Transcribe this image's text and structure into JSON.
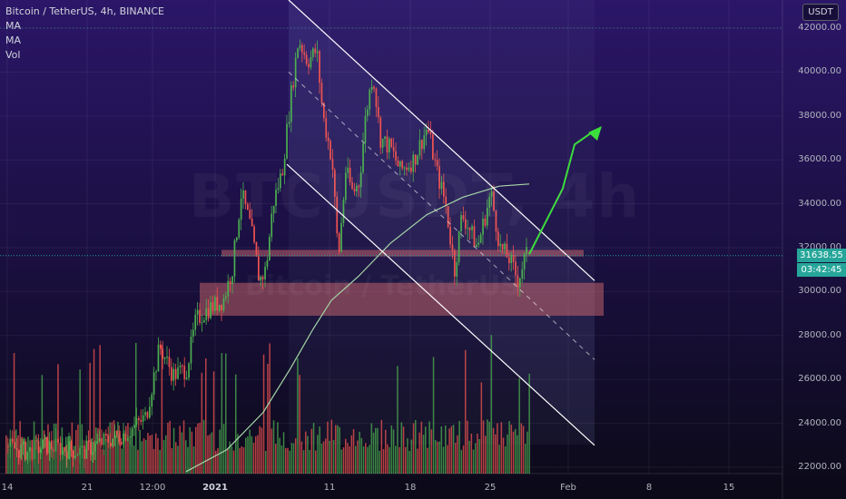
{
  "legend": {
    "symbol": "Bitcoin / TetherUS, 4h, BINANCE",
    "ma1": "MA",
    "ma2": "MA",
    "vol": "Vol"
  },
  "currency_button": "USDT",
  "watermark": {
    "symbol": "BTCUSDT, 4h",
    "description": "Bitcoin / TetherUS"
  },
  "price_axis": {
    "labels": [
      "42000.00",
      "40000.00",
      "38000.00",
      "36000.00",
      "34000.00",
      "32000.00",
      "30000.00",
      "28000.00",
      "26000.00",
      "24000.00",
      "22000.00"
    ],
    "current_price": "31638.55",
    "countdown": "03:42:45"
  },
  "time_axis": {
    "labels": [
      {
        "text": "14",
        "bold": false
      },
      {
        "text": "21",
        "bold": false
      },
      {
        "text": "12:00",
        "bold": false
      },
      {
        "text": "2021",
        "bold": true
      },
      {
        "text": "11",
        "bold": false
      },
      {
        "text": "18",
        "bold": false
      },
      {
        "text": "25",
        "bold": false
      },
      {
        "text": "Feb",
        "bold": false
      },
      {
        "text": "8",
        "bold": false
      },
      {
        "text": "15",
        "bold": false
      }
    ]
  },
  "colors": {
    "background": "#0d0a1c",
    "up": "#26a69a",
    "up_candle": "#4caf50",
    "down_candle": "#ef5350",
    "ma_line": "#a5d6a7",
    "zone": "#e57373",
    "arrow": "#3ddc3d",
    "channel": "#ffffff",
    "current_price_line": "#26a69a"
  },
  "chart_data": {
    "type": "candlestick",
    "title": "Bitcoin / TetherUS, 4h, BINANCE",
    "ylim": [
      21500,
      43000
    ],
    "y_ticks": [
      22000,
      24000,
      26000,
      28000,
      30000,
      32000,
      34000,
      36000,
      38000,
      40000,
      42000
    ],
    "current_price": 31638.55,
    "shape": "random-walk price path approximated from the chart",
    "price_path": [
      [
        0,
        23000
      ],
      [
        30,
        22700
      ],
      [
        50,
        23000
      ],
      [
        90,
        22700
      ],
      [
        110,
        23100
      ],
      [
        140,
        23600
      ],
      [
        160,
        24300
      ],
      [
        175,
        27500
      ],
      [
        190,
        26200
      ],
      [
        205,
        26500
      ],
      [
        215,
        28700
      ],
      [
        228,
        29200
      ],
      [
        245,
        29600
      ],
      [
        255,
        31000
      ],
      [
        265,
        34500
      ],
      [
        275,
        33000
      ],
      [
        285,
        30500
      ],
      [
        292,
        31000
      ],
      [
        300,
        34000
      ],
      [
        310,
        35500
      ],
      [
        320,
        39000
      ],
      [
        328,
        41500
      ],
      [
        338,
        40500
      ],
      [
        348,
        41000
      ],
      [
        355,
        38000
      ],
      [
        365,
        36000
      ],
      [
        372,
        31500
      ],
      [
        380,
        35500
      ],
      [
        388,
        34500
      ],
      [
        395,
        35000
      ],
      [
        402,
        38000
      ],
      [
        410,
        40000
      ],
      [
        418,
        37000
      ],
      [
        430,
        36500
      ],
      [
        440,
        35500
      ],
      [
        455,
        36000
      ],
      [
        470,
        37500
      ],
      [
        480,
        35500
      ],
      [
        490,
        34000
      ],
      [
        500,
        31000
      ],
      [
        508,
        33500
      ],
      [
        515,
        33000
      ],
      [
        525,
        32000
      ],
      [
        540,
        34500
      ],
      [
        550,
        32000
      ],
      [
        560,
        31500
      ],
      [
        570,
        30500
      ],
      [
        578,
        31638
      ]
    ],
    "zones": [
      {
        "from": 31600,
        "to": 31900
      },
      {
        "from": 28900,
        "to": 30400
      }
    ],
    "channel_lines": [
      {
        "label": "upper",
        "points": [
          [
            318,
            43500
          ],
          [
            655,
            30500
          ]
        ]
      },
      {
        "label": "lower",
        "points": [
          [
            318,
            35800
          ],
          [
            655,
            23000
          ]
        ]
      },
      {
        "label": "mid-dashed",
        "points": [
          [
            318,
            39500
          ],
          [
            655,
            26900
          ]
        ]
      }
    ],
    "projection_arrow": [
      [
        583,
        31700
      ],
      [
        620,
        34700
      ],
      [
        655,
        37500
      ]
    ]
  }
}
